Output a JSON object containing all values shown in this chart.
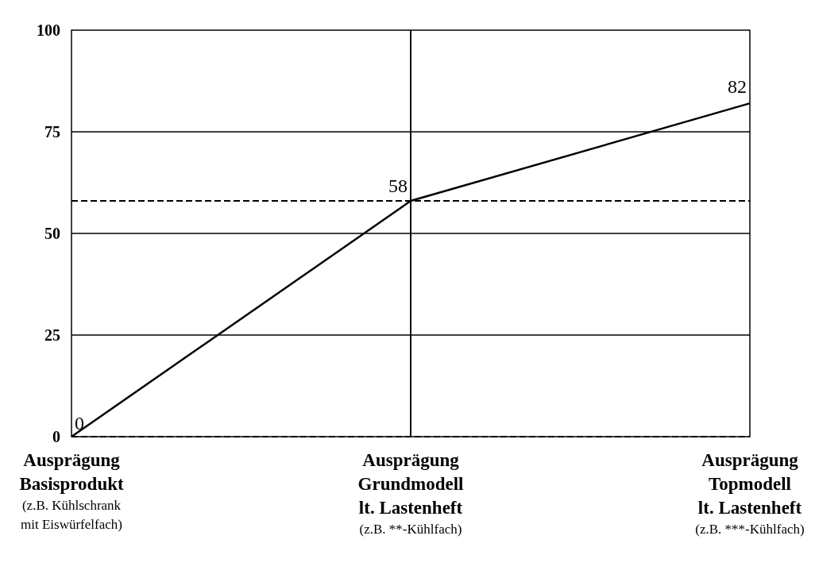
{
  "chart_data": {
    "type": "line",
    "categories": [
      "Ausprägung\nBasisprodukt\n(z.B. Kühlschrank\nmit Eiswürfelfach)",
      "Ausprägung\nGrundmodell\nlt. Lastenheft\n(z.B. **-Kühlfach)",
      "Ausprägung\nTopmodell\nlt. Lastenheft\n(z.B. ***-Kühlfach)"
    ],
    "series": [
      {
        "color": "#000000",
        "values": [
          0,
          58,
          82
        ]
      }
    ],
    "ylim": [
      0,
      100
    ],
    "yticks": [
      0,
      25,
      50,
      75,
      100
    ],
    "grid": "y",
    "data_labels": true,
    "ref_lines": [
      {
        "axis": "y",
        "value": 58,
        "line_style": "dashed",
        "color": "#000000"
      },
      {
        "axis": "y",
        "value": 0,
        "line_style": "dashed",
        "color": "#000000"
      },
      {
        "axis": "x",
        "value": "Ausprägung\nGrundmodell\nlt. Lastenheft\n(z.B. **-Kühlfach)",
        "line_style": "solid",
        "color": "#000000"
      }
    ]
  }
}
